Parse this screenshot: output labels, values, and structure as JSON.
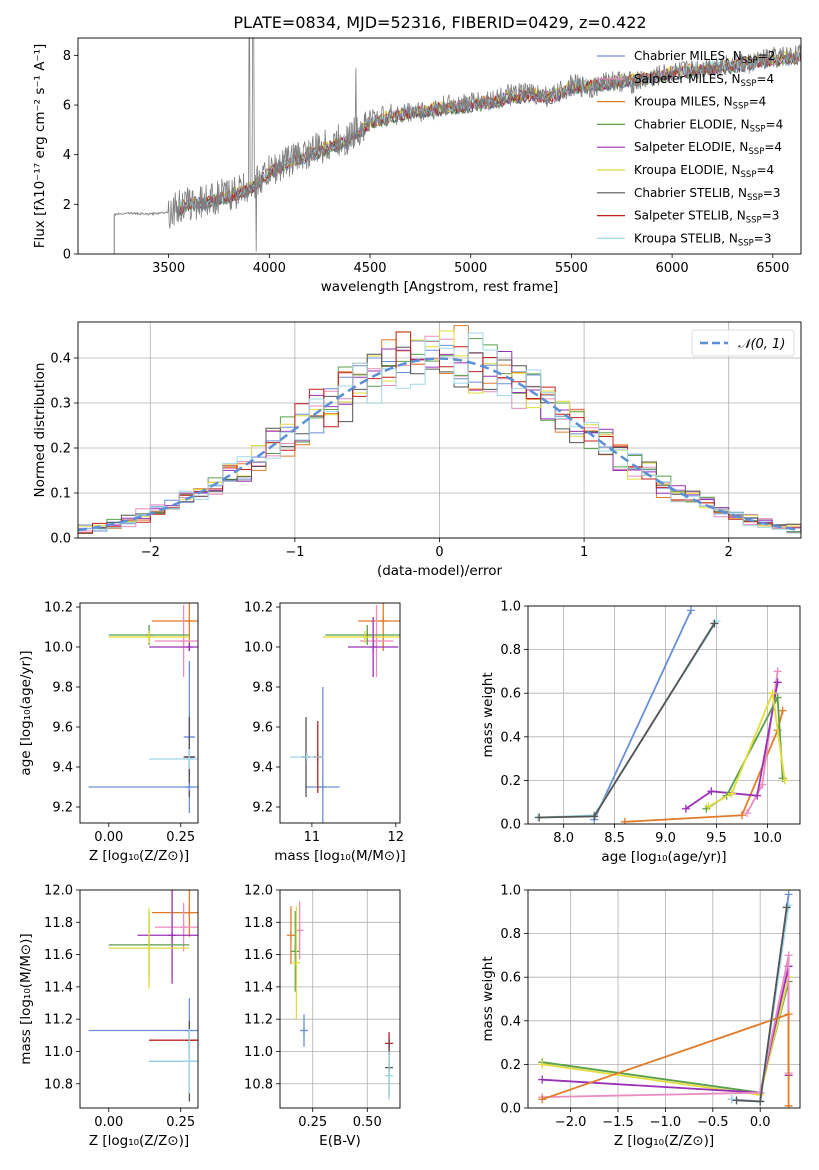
{
  "figure": {
    "title": "PLATE=0834, MJD=52316, FIBERID=0429, z=0.422"
  },
  "legend_models": [
    {
      "label": "Chabrier MILES, N",
      "sub": "SSP",
      "tail": "=2",
      "color": "#6a8fd6"
    },
    {
      "label": "Salpeter MILES, N",
      "sub": "SSP",
      "tail": "=4",
      "color": "#ea8cc0"
    },
    {
      "label": "Kroupa MILES, N",
      "sub": "SSP",
      "tail": "=4",
      "color": "#e07b2a"
    },
    {
      "label": "Chabrier ELODIE, N",
      "sub": "SSP",
      "tail": "=4",
      "color": "#5aa04a"
    },
    {
      "label": "Salpeter ELODIE, N",
      "sub": "SSP",
      "tail": "=4",
      "color": "#9b30b8"
    },
    {
      "label": "Kroupa ELODIE, N",
      "sub": "SSP",
      "tail": "=4",
      "color": "#e2dc3a"
    },
    {
      "label": "Chabrier STELIB, N",
      "sub": "SSP",
      "tail": "=3",
      "color": "#555555"
    },
    {
      "label": "Salpeter STELIB, N",
      "sub": "SSP",
      "tail": "=3",
      "color": "#c0221e"
    },
    {
      "label": "Kroupa STELIB, N",
      "sub": "SSP",
      "tail": "=3",
      "color": "#9fd8e8"
    }
  ],
  "chart_data": [
    {
      "id": "spectrum",
      "type": "line",
      "title": "PLATE=0834, MJD=52316, FIBERID=0429, z=0.422",
      "xlabel": "wavelength [Angstrom, rest frame]",
      "ylabel": "Flux [fλ10⁻¹⁷ erg cm⁻² s⁻¹ A⁻¹]",
      "xlim": [
        3050,
        6640
      ],
      "ylim": [
        0,
        8.7
      ],
      "xticks": [
        3500,
        4000,
        4500,
        5000,
        5500,
        6000,
        6500
      ],
      "yticks": [
        0,
        2,
        4,
        6,
        8
      ],
      "data_series": {
        "name": "data",
        "x": [
          3230,
          3300,
          3400,
          3500,
          3550,
          3600,
          3700,
          3800,
          3900,
          3950,
          4000,
          4100,
          4200,
          4300,
          4400,
          4500,
          4600,
          4700,
          4800,
          4900,
          5000,
          5100,
          5200,
          5300,
          5400,
          5500,
          5600,
          5700,
          5800,
          5900,
          6000,
          6100,
          6200,
          6300,
          6400,
          6500,
          6600
        ],
        "y": [
          1.6,
          1.65,
          1.6,
          1.7,
          1.9,
          2.0,
          2.2,
          2.4,
          2.7,
          3.0,
          3.3,
          3.8,
          4.1,
          4.4,
          4.7,
          5.4,
          5.6,
          5.7,
          5.8,
          6.0,
          6.1,
          6.2,
          6.4,
          6.5,
          6.3,
          6.8,
          6.7,
          7.0,
          6.9,
          7.1,
          7.3,
          7.4,
          7.6,
          7.6,
          7.7,
          7.9,
          8.0
        ]
      },
      "model_x": [
        3550,
        3600,
        3700,
        3800,
        3900,
        4000,
        4100,
        4200,
        4300,
        4400,
        4500,
        4600,
        4700,
        4800,
        4900,
        5000,
        5100,
        5200,
        5300,
        5400,
        5500,
        5600,
        5700,
        5800,
        5900,
        6000,
        6100,
        6200,
        6300,
        6400,
        6500,
        6600
      ],
      "model_y": [
        1.8,
        2.0,
        2.1,
        2.3,
        2.6,
        3.3,
        3.7,
        4.0,
        4.3,
        4.6,
        5.3,
        5.5,
        5.7,
        5.8,
        5.9,
        6.0,
        6.1,
        6.3,
        6.4,
        6.3,
        6.7,
        6.8,
        6.9,
        7.0,
        7.1,
        7.3,
        7.4,
        7.5,
        7.6,
        7.7,
        7.8,
        7.9
      ]
    },
    {
      "id": "residual-histogram",
      "type": "bar",
      "xlabel": "(data-model)/error",
      "ylabel": "Normed distribution",
      "xlim": [
        -2.5,
        2.5
      ],
      "ylim": [
        0,
        0.48
      ],
      "xticks": [
        -2,
        -1,
        0,
        1,
        2
      ],
      "yticks": [
        0.0,
        0.1,
        0.2,
        0.3,
        0.4
      ],
      "gaussian_label": "𝒩(0, 1)",
      "gaussian": {
        "mu": 0,
        "sigma": 1
      }
    },
    {
      "id": "age-vs-Z",
      "type": "scatter",
      "xlabel": "Z [log₁₀(Z/Z⊙)]",
      "ylabel": "age  [log₁₀(age/yr)]",
      "xlim": [
        -0.1,
        0.31
      ],
      "ylim": [
        9.12,
        10.22
      ],
      "xticks": [
        0.0,
        0.25
      ],
      "yticks": [
        9.2,
        9.4,
        9.6,
        9.8,
        10.0,
        10.2
      ],
      "points": [
        {
          "model": 2,
          "x": 0.28,
          "y": 10.13,
          "xerr": 0.13,
          "yerr": 0.15
        },
        {
          "model": 1,
          "x": 0.26,
          "y": 10.03,
          "xerr": 0.1,
          "yerr": 0.18
        },
        {
          "model": 3,
          "x": 0.14,
          "y": 10.06,
          "xerr": 0.14,
          "yerr": 0.05
        },
        {
          "model": 5,
          "x": 0.14,
          "y": 10.05,
          "xerr": 0.14,
          "yerr": 0.03
        },
        {
          "model": 4,
          "x": 0.28,
          "y": 10.0,
          "xerr": 0.14,
          "yerr": 0.02
        },
        {
          "model": 4,
          "x": 0.28,
          "y": 9.45,
          "xerr": 0.02,
          "yerr": 0.2
        },
        {
          "model": 0,
          "x": 0.28,
          "y": 9.55,
          "xerr": 0.02,
          "yerr": 0.38
        },
        {
          "model": 6,
          "x": 0.28,
          "y": 9.45,
          "xerr": 0.02,
          "yerr": 0.2
        },
        {
          "model": 8,
          "x": 0.28,
          "y": 9.44,
          "xerr": 0.14,
          "yerr": 0.05
        },
        {
          "model": 0,
          "x": 0.28,
          "y": 9.3,
          "xerr": 0.35,
          "yerr": 0.02
        }
      ]
    },
    {
      "id": "age-vs-mass",
      "type": "scatter",
      "xlabel": "mass [log₁₀(M/M⊙)]",
      "ylabel": "",
      "xlim": [
        10.62,
        12.05
      ],
      "ylim": [
        9.12,
        10.22
      ],
      "xticks": [
        11,
        12
      ],
      "yticks": [
        9.2,
        9.4,
        9.6,
        9.8,
        10.0,
        10.2
      ],
      "points": [
        {
          "model": 2,
          "x": 11.85,
          "y": 10.13,
          "xerr": 0.3,
          "yerr": 0.15
        },
        {
          "model": 1,
          "x": 11.77,
          "y": 10.03,
          "xerr": 0.2,
          "yerr": 0.18
        },
        {
          "model": 3,
          "x": 11.66,
          "y": 10.06,
          "xerr": 0.5,
          "yerr": 0.05
        },
        {
          "model": 5,
          "x": 11.63,
          "y": 10.05,
          "xerr": 0.5,
          "yerr": 0.03
        },
        {
          "model": 4,
          "x": 11.73,
          "y": 10.0,
          "xerr": 0.3,
          "yerr": 0.15
        },
        {
          "model": 0,
          "x": 11.13,
          "y": 9.3,
          "xerr": 0.2,
          "yerr": 0.5
        },
        {
          "model": 6,
          "x": 10.93,
          "y": 9.45,
          "xerr": 0.05,
          "yerr": 0.2
        },
        {
          "model": 7,
          "x": 11.07,
          "y": 9.45,
          "xerr": 0.05,
          "yerr": 0.18
        },
        {
          "model": 8,
          "x": 10.94,
          "y": 9.45,
          "xerr": 0.2,
          "yerr": 0.02
        }
      ]
    },
    {
      "id": "weight-vs-age",
      "type": "scatter",
      "xlabel": "age  [log₁₀(age/yr)]",
      "ylabel": "mass weight",
      "xlim": [
        7.65,
        10.32
      ],
      "ylim": [
        0,
        1.0
      ],
      "xticks": [
        8.0,
        8.5,
        9.0,
        9.5,
        10.0
      ],
      "yticks": [
        0.0,
        0.2,
        0.4,
        0.6,
        0.8,
        1.0
      ],
      "lines": [
        {
          "model": 0,
          "x": [
            8.3,
            9.25
          ],
          "y": [
            0.02,
            0.98
          ]
        },
        {
          "model": 8,
          "x": [
            7.75,
            8.3,
            9.5
          ],
          "y": [
            0.03,
            0.04,
            0.93
          ]
        },
        {
          "model": 6,
          "x": [
            7.76,
            8.3,
            9.48
          ],
          "y": [
            0.03,
            0.035,
            0.92
          ]
        },
        {
          "model": 2,
          "x": [
            8.6,
            9.75,
            10.1,
            10.15
          ],
          "y": [
            0.01,
            0.04,
            0.43,
            0.52
          ]
        },
        {
          "model": 1,
          "x": [
            9.8,
            9.95,
            10.1
          ],
          "y": [
            0.05,
            0.18,
            0.7
          ]
        },
        {
          "model": 4,
          "x": [
            9.2,
            9.45,
            9.9,
            10.1
          ],
          "y": [
            0.07,
            0.15,
            0.13,
            0.65
          ]
        },
        {
          "model": 3,
          "x": [
            9.4,
            9.6,
            10.1,
            10.15
          ],
          "y": [
            0.07,
            0.13,
            0.58,
            0.21
          ]
        },
        {
          "model": 5,
          "x": [
            9.42,
            9.65,
            10.05,
            10.17
          ],
          "y": [
            0.08,
            0.14,
            0.6,
            0.2
          ]
        }
      ]
    },
    {
      "id": "mass-vs-Z",
      "type": "scatter",
      "xlabel": "Z [log₁₀(Z/Z⊙)]",
      "ylabel": "mass [log₁₀(M/M⊙)]",
      "xlim": [
        -0.1,
        0.31
      ],
      "ylim": [
        10.65,
        12.0
      ],
      "xticks": [
        0.0,
        0.25
      ],
      "yticks": [
        10.8,
        11.0,
        11.2,
        11.4,
        11.6,
        11.8,
        12.0
      ],
      "points": [
        {
          "model": 2,
          "x": 0.28,
          "y": 11.86,
          "xerr": 0.13,
          "yerr": 0.15
        },
        {
          "model": 1,
          "x": 0.26,
          "y": 11.77,
          "xerr": 0.1,
          "yerr": 0.15
        },
        {
          "model": 4,
          "x": 0.22,
          "y": 11.72,
          "xerr": 0.12,
          "yerr": 0.3
        },
        {
          "model": 3,
          "x": 0.14,
          "y": 11.66,
          "xerr": 0.14,
          "yerr": 0.2
        },
        {
          "model": 5,
          "x": 0.14,
          "y": 11.64,
          "xerr": 0.14,
          "yerr": 0.25
        },
        {
          "model": 0,
          "x": 0.28,
          "y": 11.13,
          "xerr": 0.35,
          "yerr": 0.2
        },
        {
          "model": 7,
          "x": 0.28,
          "y": 11.07,
          "xerr": 0.14,
          "yerr": 0.05
        },
        {
          "model": 6,
          "x": 0.28,
          "y": 10.94,
          "xerr": 0.14,
          "yerr": 0.25
        },
        {
          "model": 8,
          "x": 0.28,
          "y": 10.94,
          "xerr": 0.14,
          "yerr": 0.2
        }
      ]
    },
    {
      "id": "mass-vs-EBV",
      "type": "scatter",
      "xlabel": "E(B-V)",
      "ylabel": "",
      "xlim": [
        0.1,
        0.65
      ],
      "ylim": [
        10.65,
        12.0
      ],
      "xticks": [
        0.25,
        0.5
      ],
      "yticks": [
        10.8,
        11.0,
        11.2,
        11.4,
        11.6,
        11.8,
        12.0
      ],
      "points": [
        {
          "model": 2,
          "x": 0.15,
          "y": 11.72,
          "xerr": 0,
          "yerr": 0.18
        },
        {
          "model": 1,
          "x": 0.19,
          "y": 11.75,
          "xerr": 0,
          "yerr": 0.18
        },
        {
          "model": 3,
          "x": 0.17,
          "y": 11.62,
          "xerr": 0,
          "yerr": 0.25
        },
        {
          "model": 5,
          "x": 0.175,
          "y": 11.55,
          "xerr": 0,
          "yerr": 0.35
        },
        {
          "model": 0,
          "x": 0.21,
          "y": 11.13,
          "xerr": 0,
          "yerr": 0.1
        },
        {
          "model": 7,
          "x": 0.6,
          "y": 11.05,
          "xerr": 0,
          "yerr": 0.07
        },
        {
          "model": 6,
          "x": 0.6,
          "y": 10.9,
          "xerr": 0,
          "yerr": 0.18
        },
        {
          "model": 8,
          "x": 0.6,
          "y": 10.85,
          "xerr": 0,
          "yerr": 0.15
        }
      ]
    },
    {
      "id": "weight-vs-Z",
      "type": "scatter",
      "xlabel": "Z [log₁₀(Z/Z⊙)]",
      "ylabel": "mass weight",
      "xlim": [
        -2.45,
        0.42
      ],
      "ylim": [
        0,
        1.0
      ],
      "xticks": [
        -2.0,
        -1.5,
        -1.0,
        -0.5,
        0.0
      ],
      "yticks": [
        0.0,
        0.2,
        0.4,
        0.6,
        0.8,
        1.0
      ],
      "lines": [
        {
          "model": 3,
          "x": [
            -2.3,
            0.0,
            0.3
          ],
          "y": [
            0.21,
            0.07,
            0.58
          ]
        },
        {
          "model": 5,
          "x": [
            -2.3,
            0.0,
            0.3
          ],
          "y": [
            0.2,
            0.06,
            0.6
          ]
        },
        {
          "model": 4,
          "x": [
            -2.3,
            0.0,
            0.3,
            0.3
          ],
          "y": [
            0.13,
            0.07,
            0.65,
            0.15
          ]
        },
        {
          "model": 1,
          "x": [
            -2.3,
            0.0,
            0.3,
            0.3
          ],
          "y": [
            0.05,
            0.07,
            0.7,
            0.16
          ]
        },
        {
          "model": 2,
          "x": [
            -2.3,
            0.3,
            0.3
          ],
          "y": [
            0.04,
            0.43,
            0.01
          ]
        },
        {
          "model": 0,
          "x": [
            -0.3,
            0.0,
            0.3
          ],
          "y": [
            0.04,
            0.03,
            0.98
          ]
        },
        {
          "model": 8,
          "x": [
            -0.3,
            0.0,
            0.3
          ],
          "y": [
            0.04,
            0.03,
            0.93
          ]
        },
        {
          "model": 6,
          "x": [
            -0.25,
            0.0,
            0.28
          ],
          "y": [
            0.035,
            0.03,
            0.92
          ]
        }
      ]
    }
  ]
}
